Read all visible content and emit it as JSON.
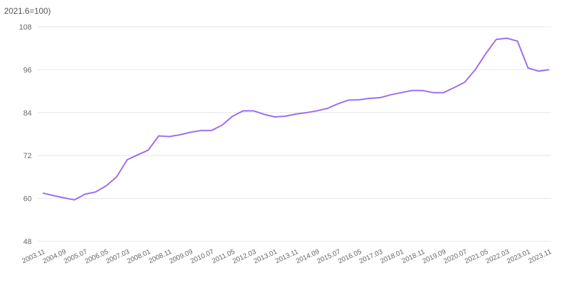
{
  "chart_data": {
    "type": "line",
    "subtitle": "2021.6=100)",
    "categories": [
      "2003.11",
      null,
      "2004.09",
      null,
      "2005.07",
      null,
      "2006.05",
      null,
      "2007.03",
      null,
      "2008.01",
      null,
      "2008.11",
      null,
      "2009.09",
      null,
      "2010.07",
      null,
      "2011.05",
      null,
      "2012.03",
      null,
      "2013.01",
      null,
      "2013.11",
      null,
      "2014.09",
      null,
      "2015.07",
      null,
      "2016.05",
      null,
      "2017.03",
      null,
      "2018.01",
      null,
      "2018.11",
      null,
      "2019.09",
      null,
      "2020.07",
      null,
      "2021.05",
      null,
      "2022.03",
      null,
      "2023.01",
      null,
      "2023.11"
    ],
    "series": [
      {
        "color": "#9b6cf0",
        "values": [
          61.5,
          60.8,
          60.2,
          59.6,
          61.2,
          61.8,
          63.5,
          66,
          70.8,
          72.2,
          73.5,
          77.5,
          77.3,
          77.8,
          78.5,
          79,
          79,
          80.5,
          83,
          84.5,
          84.5,
          83.5,
          82.8,
          83,
          83.6,
          84,
          84.5,
          85.2,
          86.5,
          87.5,
          87.6,
          88,
          88.2,
          89,
          89.6,
          90.2,
          90.2,
          89.6,
          89.6,
          91,
          92.5,
          96,
          100.5,
          104.5,
          104.8,
          104,
          96.5,
          95.6,
          96
        ]
      }
    ],
    "ylim": [
      48,
      108
    ],
    "yticks": [
      48,
      60,
      72,
      84,
      96,
      108
    ],
    "grid": true
  }
}
